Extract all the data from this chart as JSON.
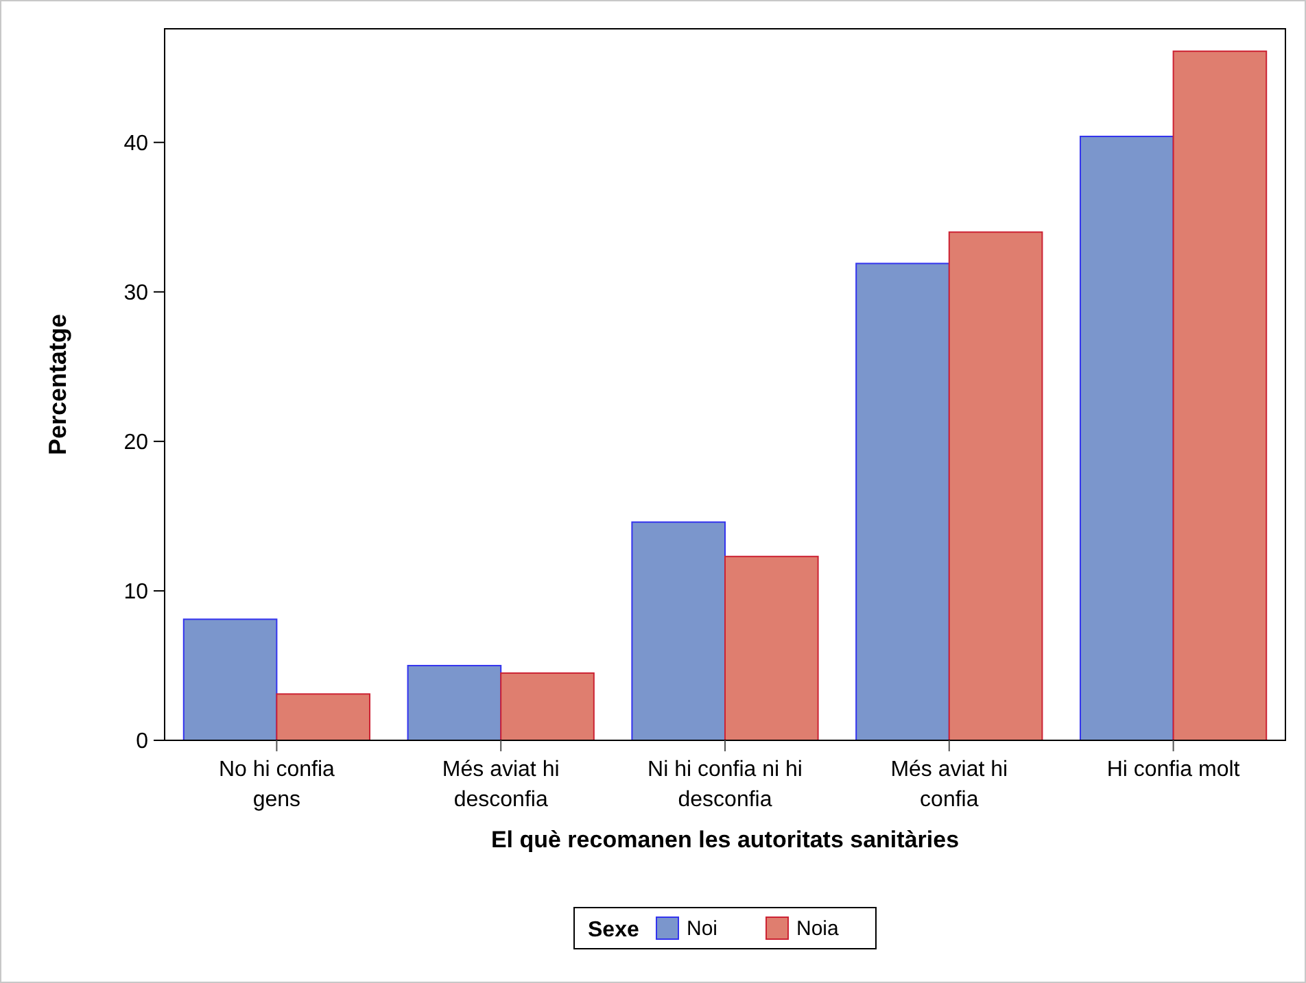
{
  "chart_data": {
    "type": "bar",
    "xlabel": "El què recomanen les autoritats sanitàries",
    "ylabel": "Percentatge",
    "legend_title": "Sexe",
    "categories": [
      "No hi confia gens",
      "Més aviat hi desconfia",
      "Ni hi confia ni hi desconfia",
      "Més aviat hi confia",
      "Hi confia molt"
    ],
    "series": [
      {
        "name": "Noi",
        "color": "#7b96cc",
        "values": [
          8.1,
          5.0,
          14.6,
          31.9,
          40.4
        ]
      },
      {
        "name": "Noia",
        "color": "#df7e6f",
        "values": [
          3.1,
          4.5,
          12.3,
          34.0,
          46.1
        ]
      }
    ],
    "ylim": [
      0,
      47.6
    ],
    "yticks": [
      0,
      10,
      20,
      30,
      40
    ],
    "grid": false,
    "legend": "bottom"
  }
}
